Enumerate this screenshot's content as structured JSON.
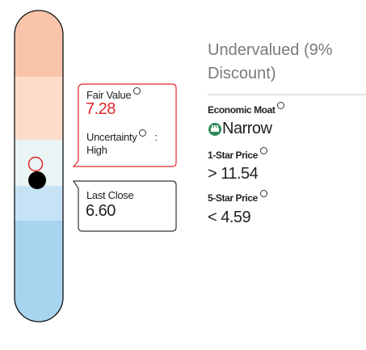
{
  "fair_value_box": {
    "label": "Fair Value",
    "value": "7.28",
    "uncertainty_label": "Uncertainty",
    "separator": ":",
    "uncertainty": "High"
  },
  "last_close_box": {
    "label": "Last Close",
    "value": "6.60"
  },
  "valuation": {
    "title": "Undervalued (9% Discount)"
  },
  "economic_moat": {
    "label": "Economic Moat",
    "value": "Narrow"
  },
  "one_star_price": {
    "label": "1-Star Price",
    "value": "> 11.54"
  },
  "five_star_price": {
    "label": "5-Star Price",
    "value": "< 4.59"
  }
}
